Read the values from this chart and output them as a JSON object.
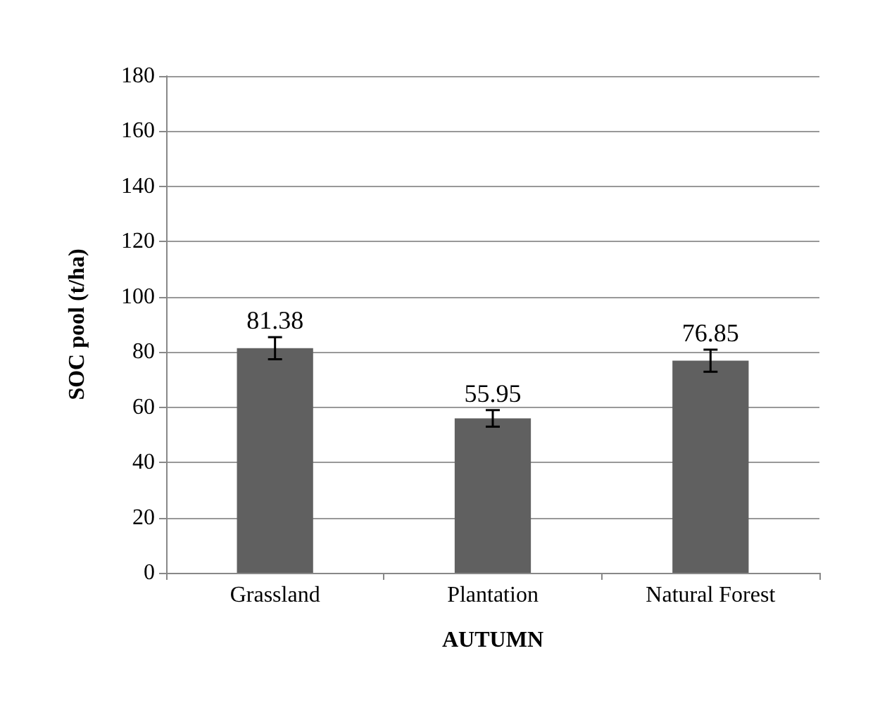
{
  "chart_data": {
    "type": "bar",
    "xlabel": "AUTUMN",
    "ylabel": "SOC pool (t/ha)",
    "categories": [
      "Grassland",
      "Plantation",
      "Natural Forest"
    ],
    "values": [
      81.38,
      55.95,
      76.85
    ],
    "errors": [
      4,
      3,
      4
    ],
    "color": "#606060",
    "ylim": [
      0,
      180
    ],
    "yticks": [
      0,
      20,
      40,
      60,
      80,
      100,
      120,
      140,
      160,
      180
    ],
    "grid": "y",
    "data_labels": true
  }
}
